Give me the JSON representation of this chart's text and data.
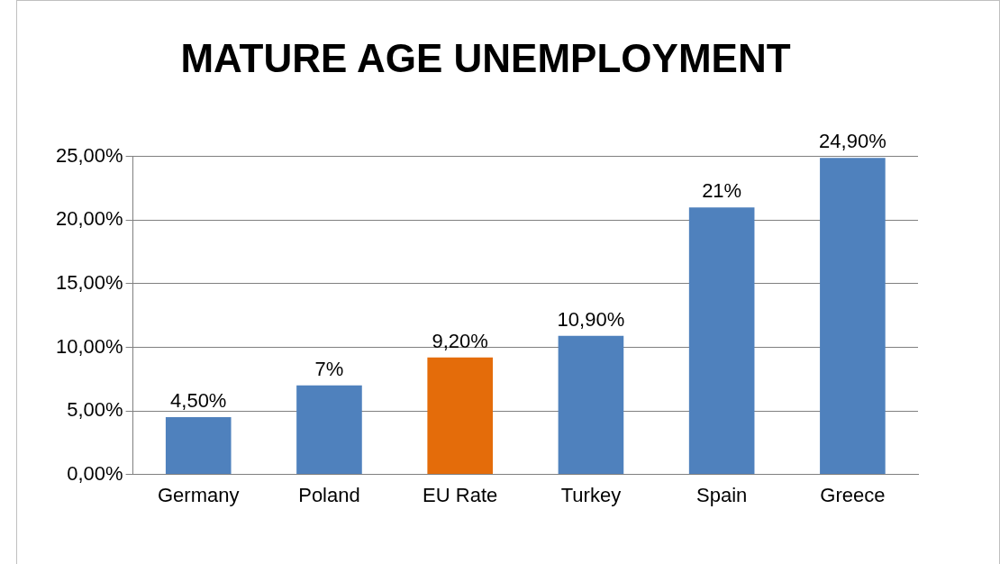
{
  "chart_data": {
    "type": "bar",
    "title": "MATURE AGE UNEMPLOYMENT",
    "categories": [
      "Germany",
      "Poland",
      "EU Rate",
      "Turkey",
      "Spain",
      "Greece"
    ],
    "values": [
      4.5,
      7,
      9.2,
      10.9,
      21,
      24.9
    ],
    "colors": [
      "#4f81bd",
      "#4f81bd",
      "#e46c0a",
      "#4f81bd",
      "#4f81bd",
      "#4f81bd"
    ],
    "value_labels": [
      "4,50%",
      "7%",
      "9,20%",
      "10,90%",
      "21%",
      "24,90%"
    ],
    "ylim": [
      0,
      25
    ],
    "yticks": [
      {
        "value": 0,
        "label": "0,00%"
      },
      {
        "value": 5,
        "label": "5,00%"
      },
      {
        "value": 10,
        "label": "10,00%"
      },
      {
        "value": 15,
        "label": "15,00%"
      },
      {
        "value": 20,
        "label": "20,00%"
      },
      {
        "value": 25,
        "label": "25,00%"
      }
    ],
    "grid": "y",
    "legend": false
  }
}
